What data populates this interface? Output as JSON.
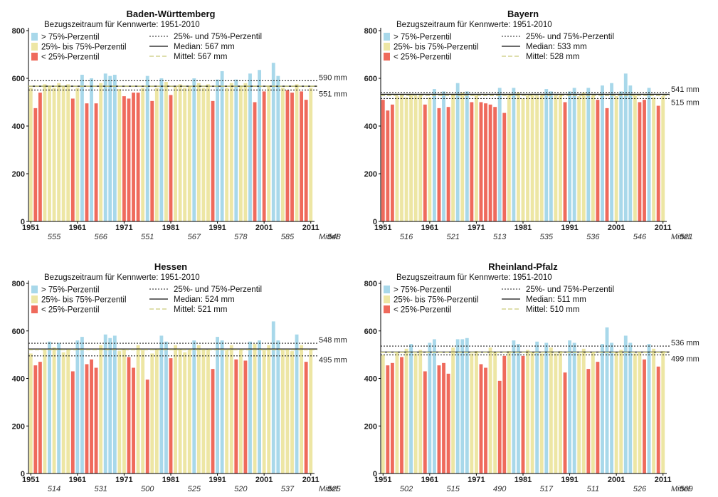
{
  "colors": {
    "high": "#a8d8ea",
    "mid": "#ede6a4",
    "low": "#ef6a5c",
    "mean_line": "#c9c97a"
  },
  "chart_data": [
    {
      "type": "bar",
      "title": "Baden-Württemberg",
      "subtitle": "Bezugszeitraum für Kennwerte: 1951-2010",
      "legend": {
        "high": "> 75%-Perzentil",
        "mid": "25%- bis 75%-Perzentil",
        "low": "< 25%-Perzentil",
        "percentile": "25%- und 75%-Perzentil",
        "median": "Median: 567 mm",
        "mean": "Mittel: 567 mm"
      },
      "ylim": [
        0,
        800
      ],
      "yticks": [
        "0",
        "200",
        "400",
        "600",
        "800"
      ],
      "xticks": [
        "1951",
        "1961",
        "1971",
        "1981",
        "1991",
        "2001",
        "2011"
      ],
      "p25": 551,
      "p75": 590,
      "median": 567,
      "mean": 567,
      "p75_label": "590 mm",
      "p25_label": "551 mm",
      "decade_means": [
        "555",
        "566",
        "551",
        "567",
        "578",
        "585",
        "548"
      ],
      "mean_word": "Mittel",
      "values": [
        560,
        475,
        540,
        575,
        570,
        560,
        580,
        565,
        575,
        515,
        560,
        615,
        495,
        600,
        495,
        580,
        620,
        610,
        615,
        555,
        525,
        515,
        540,
        540,
        560,
        610,
        505,
        560,
        600,
        585,
        530,
        565,
        575,
        560,
        565,
        600,
        580,
        560,
        575,
        505,
        595,
        630,
        560,
        580,
        595,
        570,
        580,
        620,
        500,
        635,
        545,
        570,
        665,
        610,
        560,
        550,
        540,
        575,
        545,
        510,
        560
      ]
    },
    {
      "type": "bar",
      "title": "Bayern",
      "subtitle": "Bezugszeitraum für Kennwerte: 1951-2010",
      "legend": {
        "high": "> 75%-Perzentil",
        "mid": "25%- bis 75%-Perzentil",
        "low": "< 25%-Perzentil",
        "percentile": "25%- und 75%-Perzentil",
        "median": "Median: 533 mm",
        "mean": "Mittel: 528 mm"
      },
      "ylim": [
        0,
        800
      ],
      "yticks": [
        "0",
        "200",
        "400",
        "600",
        "800"
      ],
      "xticks": [
        "1951",
        "1961",
        "1971",
        "1981",
        "1991",
        "2001",
        "2011"
      ],
      "p25": 515,
      "p75": 541,
      "median": 533,
      "mean": 528,
      "p75_label": "541 mm",
      "p25_label": "515 mm",
      "decade_means": [
        "516",
        "521",
        "513",
        "535",
        "536",
        "546",
        "521"
      ],
      "mean_word": "Mittel",
      "values": [
        510,
        465,
        490,
        525,
        530,
        520,
        535,
        525,
        530,
        490,
        520,
        555,
        475,
        545,
        480,
        535,
        580,
        540,
        545,
        500,
        530,
        500,
        495,
        490,
        480,
        560,
        455,
        535,
        560,
        540,
        515,
        530,
        535,
        525,
        530,
        555,
        545,
        525,
        535,
        500,
        545,
        560,
        525,
        540,
        560,
        530,
        510,
        570,
        475,
        580,
        525,
        545,
        620,
        570,
        530,
        500,
        510,
        560,
        520,
        485,
        525
      ]
    },
    {
      "type": "bar",
      "title": "Hessen",
      "subtitle": "Bezugszeitraum für Kennwerte: 1951-2010",
      "legend": {
        "high": "> 75%-Perzentil",
        "mid": "25%- bis 75%-Perzentil",
        "low": "< 25%-Perzentil",
        "percentile": "25%- und 75%-Perzentil",
        "median": "Median: 524 mm",
        "mean": "Mittel: 521 mm"
      },
      "ylim": [
        0,
        800
      ],
      "yticks": [
        "0",
        "200",
        "400",
        "600",
        "800"
      ],
      "xticks": [
        "1951",
        "1961",
        "1971",
        "1981",
        "1991",
        "2001",
        "2011"
      ],
      "p25": 495,
      "p75": 548,
      "median": 524,
      "mean": 521,
      "p75_label": "548 mm",
      "p25_label": "495 mm",
      "decade_means": [
        "514",
        "531",
        "500",
        "525",
        "520",
        "537",
        "525"
      ],
      "mean_word": "Mittel",
      "values": [
        505,
        455,
        470,
        520,
        555,
        530,
        550,
        510,
        525,
        430,
        560,
        575,
        460,
        480,
        445,
        540,
        585,
        570,
        580,
        515,
        525,
        490,
        445,
        540,
        520,
        395,
        505,
        525,
        580,
        555,
        485,
        540,
        525,
        510,
        520,
        560,
        540,
        520,
        525,
        440,
        575,
        560,
        520,
        540,
        480,
        520,
        475,
        555,
        545,
        560,
        520,
        540,
        640,
        560,
        520,
        525,
        515,
        585,
        540,
        470,
        525
      ]
    },
    {
      "type": "bar",
      "title": "Rheinland-Pfalz",
      "subtitle": "Bezugszeitraum für Kennwerte: 1951-2010",
      "legend": {
        "high": "> 75%-Perzentil",
        "mid": "25%- bis 75%-Perzentil",
        "low": "< 25%-Perzentil",
        "percentile": "25%- und 75%-Perzentil",
        "median": "Median: 511 mm",
        "mean": "Mittel: 510 mm"
      },
      "ylim": [
        0,
        800
      ],
      "yticks": [
        "0",
        "200",
        "400",
        "600",
        "800"
      ],
      "xticks": [
        "1951",
        "1961",
        "1971",
        "1981",
        "1991",
        "2001",
        "2011"
      ],
      "p25": 499,
      "p75": 536,
      "median": 511,
      "mean": 510,
      "p75_label": "536 mm",
      "p25_label": "499 mm",
      "decade_means": [
        "502",
        "515",
        "490",
        "517",
        "511",
        "526",
        "509"
      ],
      "mean_word": "Mittel",
      "values": [
        500,
        455,
        465,
        510,
        490,
        525,
        545,
        505,
        520,
        430,
        550,
        565,
        455,
        465,
        420,
        530,
        565,
        565,
        570,
        505,
        515,
        460,
        445,
        530,
        510,
        390,
        495,
        515,
        560,
        545,
        495,
        520,
        510,
        555,
        505,
        550,
        530,
        505,
        515,
        425,
        560,
        550,
        505,
        525,
        440,
        510,
        470,
        545,
        615,
        550,
        510,
        520,
        580,
        550,
        505,
        510,
        480,
        545,
        525,
        450,
        515
      ]
    }
  ]
}
